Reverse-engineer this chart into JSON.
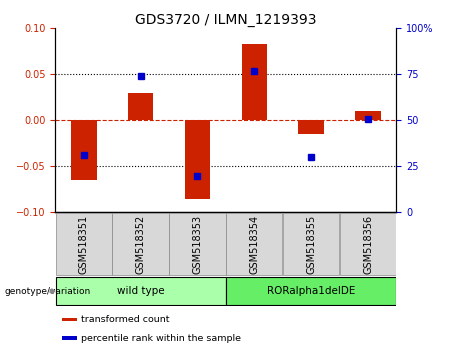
{
  "title": "GDS3720 / ILMN_1219393",
  "categories": [
    "GSM518351",
    "GSM518352",
    "GSM518353",
    "GSM518354",
    "GSM518355",
    "GSM518356"
  ],
  "red_bars": [
    -0.065,
    0.03,
    -0.085,
    0.083,
    -0.015,
    0.01
  ],
  "blue_dots_mapped": [
    -0.038,
    0.048,
    -0.06,
    0.054,
    -0.04,
    0.002
  ],
  "ylim": [
    -0.1,
    0.1
  ],
  "yticks_left": [
    -0.1,
    -0.05,
    0,
    0.05,
    0.1
  ],
  "yticks_right": [
    0,
    25,
    50,
    75,
    100
  ],
  "red_color": "#cc2200",
  "blue_color": "#0000cc",
  "bar_width": 0.45,
  "groups": [
    {
      "label": "wild type",
      "samples": [
        0,
        1,
        2
      ],
      "color": "#aaffaa"
    },
    {
      "label": "RORalpha1delDE",
      "samples": [
        3,
        4,
        5
      ],
      "color": "#66ee66"
    }
  ],
  "genotype_label": "genotype/variation",
  "legend_items": [
    {
      "label": "transformed count",
      "color": "#cc2200"
    },
    {
      "label": "percentile rank within the sample",
      "color": "#0000cc"
    }
  ],
  "title_fontsize": 10,
  "tick_fontsize": 7,
  "label_fontsize": 7.5,
  "bg_gray": "#d8d8d8"
}
